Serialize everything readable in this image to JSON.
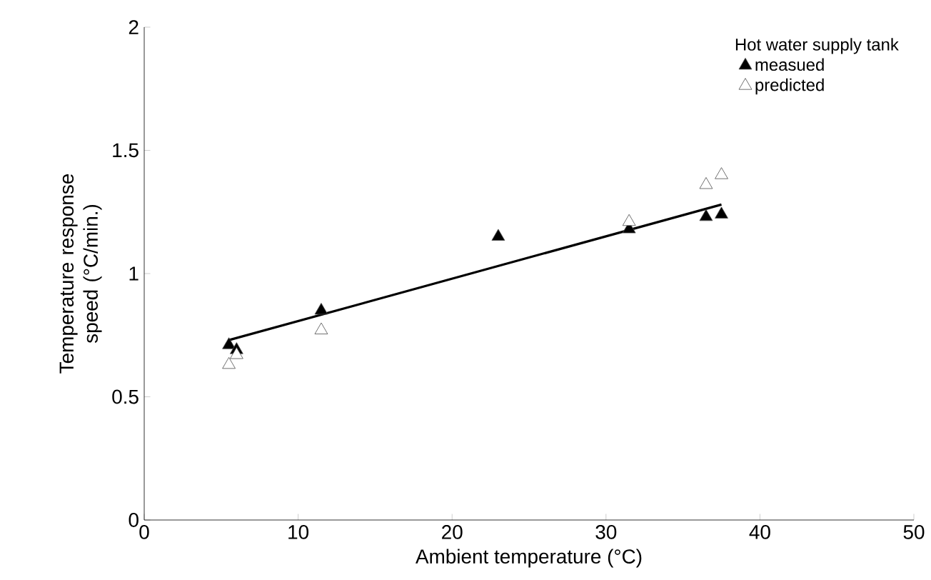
{
  "chart_data": {
    "type": "scatter",
    "xlabel": "Ambient temperature (°C)",
    "ylabel": "Temperature response speed (°C/min.)",
    "legend_title": "Hot water supply tank",
    "xlim": [
      0,
      50
    ],
    "ylim": [
      0,
      2
    ],
    "xticks": [
      0,
      10,
      20,
      30,
      40,
      50
    ],
    "yticks": [
      0,
      0.5,
      1,
      1.5,
      2
    ],
    "legend": "top right",
    "grid": false,
    "series": [
      {
        "name": "measued",
        "color": "#000000",
        "marker": "triangle",
        "x": [
          5.5,
          6,
          11.5,
          23,
          31.5,
          36.5,
          37.5
        ],
        "values": [
          0.71,
          0.69,
          0.85,
          1.15,
          1.18,
          1.23,
          1.24
        ]
      },
      {
        "name": "predicted",
        "color": "#ffffff",
        "marker": "triangle",
        "x": [
          5.5,
          6,
          11.5,
          31.5,
          36.5,
          37.5
        ],
        "values": [
          0.63,
          0.67,
          0.77,
          1.21,
          1.36,
          1.4
        ]
      },
      {
        "type": "line",
        "color": "#000000",
        "marker": "none",
        "x": [
          5.5,
          37.5
        ],
        "values": [
          0.73,
          1.28
        ]
      }
    ]
  }
}
